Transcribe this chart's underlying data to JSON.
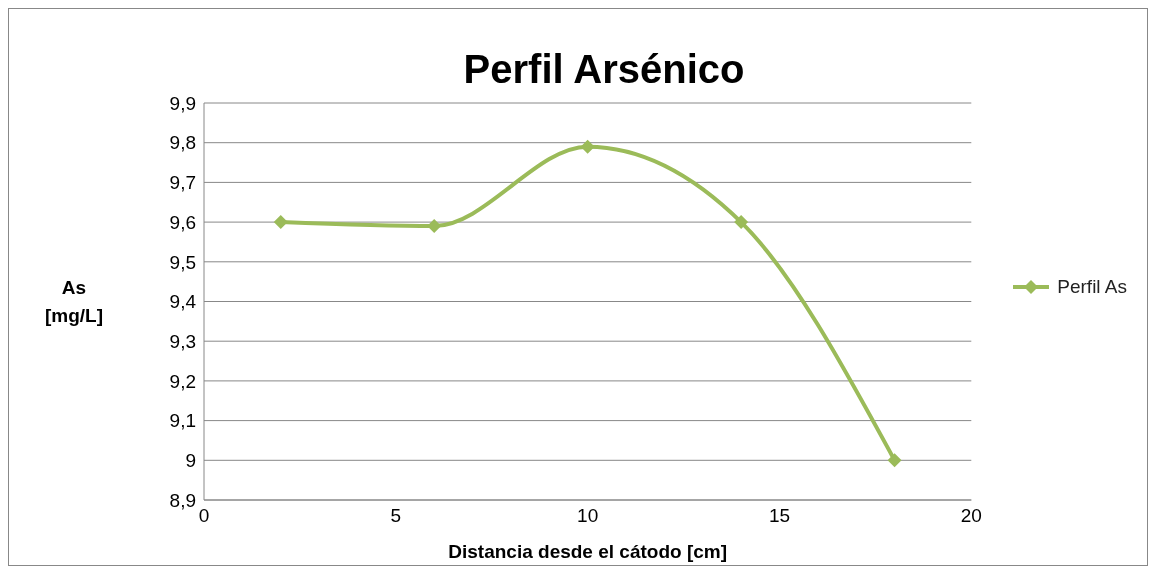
{
  "chart_data": {
    "type": "line",
    "title": "Perfil Arsénico",
    "xlabel": "Distancia desde el cátodo [cm]",
    "ylabel": "As [mg/L]",
    "x": [
      2,
      6,
      10,
      14,
      18
    ],
    "series": [
      {
        "name": "Perfil As",
        "color": "#9bbb59",
        "values": [
          9.6,
          9.59,
          9.79,
          9.6,
          9.0
        ]
      }
    ],
    "xlim": [
      0,
      20
    ],
    "xticks": [
      0,
      5,
      10,
      15,
      20
    ],
    "ylim": [
      8.9,
      9.9
    ],
    "yticks": [
      {
        "value": 8.9,
        "label": "8,9"
      },
      9,
      {
        "value": 9.1,
        "label": "9,1"
      },
      {
        "value": 9.2,
        "label": "9,2"
      },
      {
        "value": 9.3,
        "label": "9,3"
      },
      {
        "value": 9.4,
        "label": "9,4"
      },
      {
        "value": 9.5,
        "label": "9,5"
      },
      {
        "value": 9.6,
        "label": "9,6"
      },
      {
        "value": 9.7,
        "label": "9,7"
      },
      {
        "value": 9.8,
        "label": "9,8"
      },
      {
        "value": 9.9,
        "label": "9,9"
      }
    ],
    "grid": "y",
    "legend": "right",
    "marker": "diamond",
    "line_style": "solid"
  }
}
